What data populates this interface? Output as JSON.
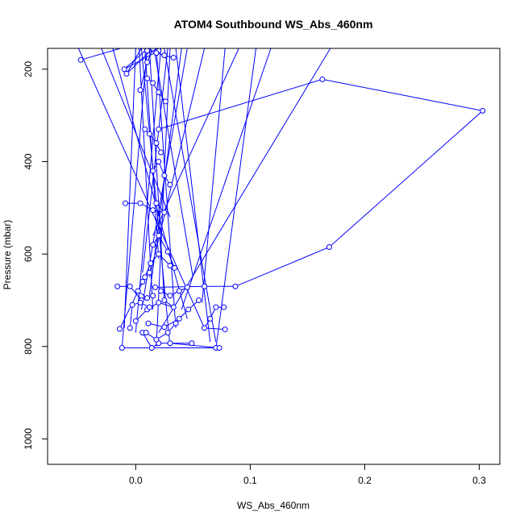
{
  "chart_data": {
    "type": "line",
    "title": "ATOM4 Southbound WS_Abs_460nm",
    "xlabel": "WS_Abs_460nm",
    "ylabel": "Pressure (mbar)",
    "xlim": [
      -0.077,
      0.318
    ],
    "ylim": [
      1055,
      155
    ],
    "y_reversed": true,
    "x_ticks": [
      0.0,
      0.1,
      0.2,
      0.3
    ],
    "x_tick_labels": [
      "0.0",
      "0.1",
      "0.2",
      "0.3"
    ],
    "y_ticks": [
      200,
      400,
      600,
      800,
      1000
    ],
    "y_tick_labels": [
      "200",
      "400",
      "600",
      "800",
      "1000"
    ],
    "grid": false,
    "marker": "open-circle",
    "color": "#0000ff",
    "series": [
      {
        "values": [
          [
            -0.048,
            180
          ],
          [
            0.005,
            142
          ],
          [
            0.012,
            152
          ],
          [
            -0.01,
            200
          ],
          [
            0.02,
            160
          ],
          [
            0.018,
            152
          ]
        ]
      },
      {
        "values": [
          [
            0.004,
            245
          ],
          [
            0.01,
            185
          ],
          [
            0.015,
            155
          ],
          [
            -0.008,
            210
          ],
          [
            0.006,
            150
          ]
        ]
      },
      {
        "values": [
          [
            0.02,
            330
          ],
          [
            0.163,
            222
          ],
          [
            0.303,
            290
          ],
          [
            0.169,
            585
          ],
          [
            0.087,
            670
          ],
          [
            0.06,
            670
          ],
          [
            0.017,
            672
          ]
        ]
      },
      {
        "values": [
          [
            -0.009,
            490
          ],
          [
            0.004,
            490
          ],
          [
            0.015,
            505
          ],
          [
            0.025,
            510
          ],
          [
            0.018,
            490
          ]
        ]
      },
      {
        "values": [
          [
            -0.014,
            762
          ],
          [
            0.008,
            650
          ],
          [
            0.013,
            620
          ],
          [
            0.02,
            600
          ],
          [
            0.03,
            625
          ]
        ]
      },
      {
        "values": [
          [
            -0.012,
            803
          ],
          [
            0.07,
            803
          ],
          [
            0.073,
            803
          ],
          [
            0.03,
            793
          ]
        ]
      },
      {
        "values": [
          [
            0.0,
            745
          ],
          [
            0.01,
            720
          ],
          [
            0.02,
            705
          ],
          [
            0.033,
            715
          ],
          [
            0.025,
            700
          ]
        ]
      },
      {
        "values": [
          [
            -0.016,
            670
          ],
          [
            -0.005,
            670
          ],
          [
            0.005,
            700
          ],
          [
            0.015,
            690
          ]
        ]
      },
      {
        "values": [
          [
            0.049,
            793
          ],
          [
            0.02,
            793
          ],
          [
            0.014,
            803
          ],
          [
            0.006,
            770
          ]
        ]
      },
      {
        "values": [
          [
            0.077,
            715
          ],
          [
            0.07,
            715
          ],
          [
            0.065,
            740
          ],
          [
            0.06,
            760
          ],
          [
            0.078,
            763
          ]
        ]
      },
      {
        "values": [
          [
            0.011,
            750
          ],
          [
            0.025,
            758
          ],
          [
            0.038,
            740
          ],
          [
            0.046,
            720
          ],
          [
            0.055,
            700
          ]
        ]
      },
      {
        "values": [
          [
            0.009,
            770
          ],
          [
            0.018,
            785
          ],
          [
            0.028,
            770
          ],
          [
            0.035,
            750
          ]
        ]
      },
      {
        "values": [
          [
            -0.005,
            760
          ],
          [
            -0.003,
            710
          ],
          [
            0.004,
            705
          ],
          [
            0.012,
            715
          ]
        ]
      },
      {
        "values": [
          [
            0.045,
            672
          ],
          [
            0.038,
            680
          ],
          [
            0.03,
            690
          ],
          [
            0.022,
            680
          ]
        ]
      },
      {
        "values": [
          [
            0.015,
            580
          ],
          [
            0.02,
            560
          ],
          [
            0.028,
            595
          ],
          [
            0.034,
            630
          ]
        ]
      },
      {
        "values": [
          [
            0.03,
            450
          ],
          [
            0.025,
            430
          ],
          [
            0.02,
            400
          ],
          [
            0.015,
            420
          ]
        ]
      },
      {
        "values": [
          [
            0.022,
            380
          ],
          [
            0.018,
            360
          ],
          [
            0.012,
            340
          ],
          [
            0.008,
            330
          ]
        ]
      },
      {
        "values": [
          [
            0.026,
            270
          ],
          [
            0.02,
            250
          ],
          [
            0.015,
            230
          ],
          [
            0.01,
            220
          ]
        ]
      },
      {
        "values": [
          [
            0.033,
            175
          ],
          [
            0.025,
            170
          ],
          [
            0.018,
            165
          ],
          [
            0.01,
            160
          ]
        ]
      },
      {
        "values": [
          [
            0.012,
            640
          ],
          [
            0.006,
            660
          ],
          [
            0.002,
            680
          ],
          [
            0.01,
            695
          ]
        ]
      }
    ],
    "connector_lines": [
      {
        "from": [
          0.105,
          155
        ],
        "to": [
          0.07,
          805
        ]
      },
      {
        "from": [
          0.118,
          155
        ],
        "to": [
          0.04,
          720
        ]
      },
      {
        "from": [
          0.078,
          155
        ],
        "to": [
          0.058,
          705
        ]
      },
      {
        "from": [
          0.17,
          155
        ],
        "to": [
          0.02,
          770
        ]
      },
      {
        "from": [
          -0.05,
          155
        ],
        "to": [
          0.06,
          760
        ]
      },
      {
        "from": [
          -0.02,
          155
        ],
        "to": [
          0.045,
          740
        ]
      },
      {
        "from": [
          0.045,
          155
        ],
        "to": [
          0.005,
          720
        ]
      },
      {
        "from": [
          0.06,
          155
        ],
        "to": [
          0.012,
          650
        ]
      },
      {
        "from": [
          0.09,
          155
        ],
        "to": [
          0.015,
          560
        ]
      },
      {
        "from": [
          -0.03,
          155
        ],
        "to": [
          0.03,
          520
        ]
      },
      {
        "from": [
          0.0,
          155
        ],
        "to": [
          -0.01,
          760
        ]
      },
      {
        "from": [
          0.01,
          155
        ],
        "to": [
          -0.012,
          803
        ]
      },
      {
        "from": [
          0.025,
          155
        ],
        "to": [
          0.07,
          790
        ]
      },
      {
        "from": [
          0.035,
          155
        ],
        "to": [
          0.065,
          790
        ]
      },
      {
        "from": [
          0.016,
          155
        ],
        "to": [
          0.05,
          650
        ]
      },
      {
        "from": [
          0.005,
          155
        ],
        "to": [
          0.03,
          800
        ]
      },
      {
        "from": [
          0.022,
          155
        ],
        "to": [
          0.0,
          770
        ]
      },
      {
        "from": [
          0.03,
          155
        ],
        "to": [
          0.018,
          800
        ]
      },
      {
        "from": [
          0.04,
          155
        ],
        "to": [
          0.012,
          690
        ]
      },
      {
        "from": [
          0.012,
          155
        ],
        "to": [
          0.025,
          700
        ]
      },
      {
        "from": [
          0.018,
          155
        ],
        "to": [
          0.035,
          760
        ]
      },
      {
        "from": [
          0.028,
          155
        ],
        "to": [
          0.006,
          640
        ]
      },
      {
        "from": [
          0.008,
          155
        ],
        "to": [
          0.02,
          610
        ]
      },
      {
        "from": [
          0.003,
          155
        ],
        "to": [
          0.015,
          720
        ]
      }
    ]
  }
}
